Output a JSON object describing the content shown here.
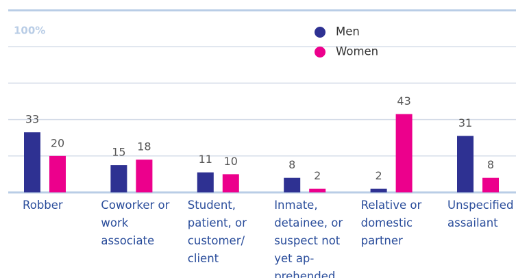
{
  "chart_data": {
    "type": "bar",
    "categories": [
      "Robber",
      "Coworker or work associate",
      "Student, patient, or customer/ client",
      "Inmate, detainee, or suspect not yet ap­prehended",
      "Relative or domestic partner",
      "Unspecified assailant"
    ],
    "series": [
      {
        "name": "Men",
        "color": "#2e3192",
        "values": [
          33,
          15,
          11,
          8,
          2,
          31
        ]
      },
      {
        "name": "Women",
        "color": "#ec008c",
        "values": [
          20,
          18,
          10,
          2,
          43,
          8
        ]
      }
    ],
    "ylim": [
      0,
      100
    ],
    "yticks": [
      {
        "value": 100,
        "label": "100%"
      }
    ],
    "grid": [
      20,
      40,
      60,
      80
    ]
  }
}
